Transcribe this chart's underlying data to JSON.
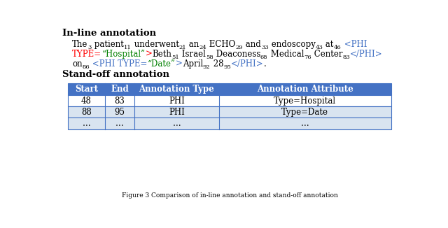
{
  "inline_label": "In-line annotation",
  "standoff_label": "Stand-off annotation",
  "line1_parts": [
    {
      "text": "The",
      "color": "#000000",
      "sub": false
    },
    {
      "text": "3",
      "color": "#000000",
      "sub": true
    },
    {
      "text": " patient",
      "color": "#000000",
      "sub": false
    },
    {
      "text": "11",
      "color": "#000000",
      "sub": true
    },
    {
      "text": " underwent",
      "color": "#000000",
      "sub": false
    },
    {
      "text": "21",
      "color": "#000000",
      "sub": true
    },
    {
      "text": " an",
      "color": "#000000",
      "sub": false
    },
    {
      "text": "24",
      "color": "#000000",
      "sub": true
    },
    {
      "text": " ECHO",
      "color": "#000000",
      "sub": false
    },
    {
      "text": "29",
      "color": "#000000",
      "sub": true
    },
    {
      "text": " and",
      "color": "#000000",
      "sub": false
    },
    {
      "text": "33",
      "color": "#000000",
      "sub": true
    },
    {
      "text": " endoscopy",
      "color": "#000000",
      "sub": false
    },
    {
      "text": "43",
      "color": "#000000",
      "sub": true
    },
    {
      "text": " at",
      "color": "#000000",
      "sub": false
    },
    {
      "text": "46",
      "color": "#000000",
      "sub": true
    },
    {
      "text": " <PHI",
      "color": "#4472C4",
      "sub": false
    }
  ],
  "line2_parts": [
    {
      "text": "TYPE=",
      "color": "#FF0000",
      "sub": false
    },
    {
      "text": "“Hospital”",
      "color": "#008000",
      "sub": false
    },
    {
      "text": ">",
      "color": "#FF0000",
      "sub": false
    },
    {
      "text": "Beth",
      "color": "#000000",
      "sub": false
    },
    {
      "text": "51",
      "color": "#000000",
      "sub": true
    },
    {
      "text": " Israel",
      "color": "#000000",
      "sub": false
    },
    {
      "text": "58",
      "color": "#000000",
      "sub": true
    },
    {
      "text": " Deaconess",
      "color": "#000000",
      "sub": false
    },
    {
      "text": "68",
      "color": "#000000",
      "sub": true
    },
    {
      "text": " Medical",
      "color": "#000000",
      "sub": false
    },
    {
      "text": "76",
      "color": "#000000",
      "sub": true
    },
    {
      "text": " Center",
      "color": "#000000",
      "sub": false
    },
    {
      "text": "83",
      "color": "#000000",
      "sub": true
    },
    {
      "text": "</PHI>",
      "color": "#4472C4",
      "sub": false
    }
  ],
  "line3_parts": [
    {
      "text": "on",
      "color": "#000000",
      "sub": false
    },
    {
      "text": "86",
      "color": "#000000",
      "sub": true
    },
    {
      "text": " <PHI TYPE=",
      "color": "#4472C4",
      "sub": false
    },
    {
      "text": "“Date”",
      "color": "#008000",
      "sub": false
    },
    {
      "text": ">",
      "color": "#4472C4",
      "sub": false
    },
    {
      "text": "April",
      "color": "#000000",
      "sub": false
    },
    {
      "text": "92",
      "color": "#000000",
      "sub": true
    },
    {
      "text": " 28",
      "color": "#000000",
      "sub": false
    },
    {
      "text": "95",
      "color": "#000000",
      "sub": true
    },
    {
      "text": "</PHI>",
      "color": "#4472C4",
      "sub": false
    },
    {
      "text": ".",
      "color": "#000000",
      "sub": false
    }
  ],
  "table_header": [
    "Start",
    "End",
    "Annotation Type",
    "Annotation Attribute"
  ],
  "table_rows": [
    [
      "48",
      "83",
      "PHI",
      "Type=Hospital"
    ],
    [
      "88",
      "95",
      "PHI",
      "Type=Date"
    ],
    [
      "…",
      "…",
      "…",
      "…"
    ]
  ],
  "header_bg": "#4472C4",
  "header_fg": "#FFFFFF",
  "row1_bg": "#FFFFFF",
  "row2_bg": "#D9E4F0",
  "row3_bg": "#D9E4F0",
  "table_border": "#4472C4",
  "bg_color": "#FFFFFF",
  "caption": "Figure 3 Comparison of in-line annotation and stand-off annotation",
  "main_fs": 8.5,
  "sub_fs": 6.0,
  "label_fs": 9.5,
  "caption_fs": 6.5,
  "table_fs": 8.5,
  "table_header_fs": 8.5
}
